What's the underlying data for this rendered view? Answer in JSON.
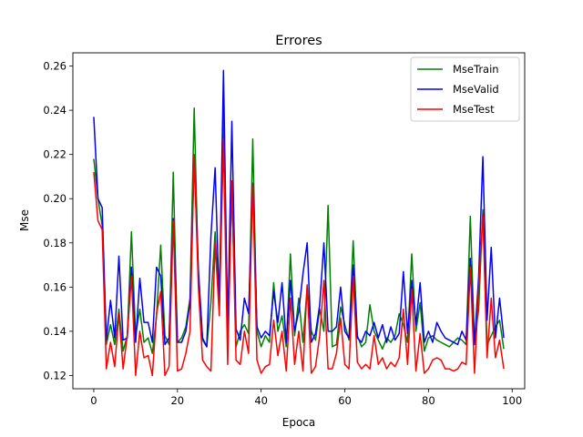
{
  "chart_data": {
    "type": "line",
    "title": "Errores",
    "xlabel": "Epoca",
    "ylabel": "Mse",
    "xlim": [
      -5,
      103
    ],
    "ylim": [
      0.114,
      0.266
    ],
    "xticks": [
      0,
      20,
      40,
      60,
      80,
      100
    ],
    "yticks": [
      0.12,
      0.14,
      0.16,
      0.18,
      0.2,
      0.22,
      0.24,
      0.26
    ],
    "xtick_labels": [
      "0",
      "20",
      "40",
      "60",
      "80",
      "100"
    ],
    "ytick_labels": [
      "0.12",
      "0.14",
      "0.16",
      "0.18",
      "0.20",
      "0.22",
      "0.24",
      "0.26"
    ],
    "grid": false,
    "legend_position": "top-right",
    "series": [
      {
        "name": "MseTrain",
        "color": "#008000",
        "x": [
          0,
          1,
          2,
          3,
          4,
          5,
          6,
          7,
          8,
          9,
          10,
          11,
          12,
          13,
          14,
          15,
          16,
          17,
          18,
          19,
          20,
          21,
          22,
          23,
          24,
          25,
          26,
          27,
          28,
          29,
          30,
          31,
          32,
          33,
          34,
          35,
          36,
          37,
          38,
          39,
          40,
          41,
          42,
          43,
          44,
          45,
          46,
          47,
          48,
          49,
          50,
          51,
          52,
          53,
          54,
          55,
          56,
          57,
          58,
          59,
          60,
          61,
          62,
          63,
          64,
          65,
          66,
          67,
          68,
          69,
          70,
          71,
          72,
          73,
          74,
          75,
          76,
          77,
          78,
          79,
          80,
          81,
          82,
          83,
          84,
          85,
          86,
          87,
          88,
          89,
          90,
          91,
          92,
          93,
          94,
          95,
          96,
          97,
          98
        ],
        "values": [
          0.218,
          0.2,
          0.188,
          0.134,
          0.143,
          0.134,
          0.15,
          0.131,
          0.138,
          0.185,
          0.138,
          0.15,
          0.135,
          0.137,
          0.13,
          0.147,
          0.179,
          0.138,
          0.134,
          0.212,
          0.135,
          0.137,
          0.142,
          0.155,
          0.241,
          0.165,
          0.136,
          0.133,
          0.153,
          0.185,
          0.15,
          0.24,
          0.14,
          0.205,
          0.133,
          0.14,
          0.143,
          0.139,
          0.227,
          0.14,
          0.133,
          0.138,
          0.135,
          0.162,
          0.14,
          0.147,
          0.133,
          0.175,
          0.138,
          0.155,
          0.135,
          0.16,
          0.14,
          0.136,
          0.15,
          0.14,
          0.197,
          0.133,
          0.134,
          0.151,
          0.143,
          0.136,
          0.181,
          0.138,
          0.133,
          0.135,
          0.152,
          0.14,
          0.136,
          0.132,
          0.137,
          0.135,
          0.138,
          0.148,
          0.143,
          0.135,
          0.175,
          0.14,
          0.153,
          0.131,
          0.137,
          0.138,
          0.136,
          0.135,
          0.134,
          0.133,
          0.135,
          0.137,
          0.136,
          0.134,
          0.192,
          0.135,
          0.15,
          0.195,
          0.134,
          0.138,
          0.142,
          0.145,
          0.132
        ]
      },
      {
        "name": "MseValid",
        "color": "#0000ff",
        "x": [
          0,
          1,
          2,
          3,
          4,
          5,
          6,
          7,
          8,
          9,
          10,
          11,
          12,
          13,
          14,
          15,
          16,
          17,
          18,
          19,
          20,
          21,
          22,
          23,
          24,
          25,
          26,
          27,
          28,
          29,
          30,
          31,
          32,
          33,
          34,
          35,
          36,
          37,
          38,
          39,
          40,
          41,
          42,
          43,
          44,
          45,
          46,
          47,
          48,
          49,
          50,
          51,
          52,
          53,
          54,
          55,
          56,
          57,
          58,
          59,
          60,
          61,
          62,
          63,
          64,
          65,
          66,
          67,
          68,
          69,
          70,
          71,
          72,
          73,
          74,
          75,
          76,
          77,
          78,
          79,
          80,
          81,
          82,
          83,
          84,
          85,
          86,
          87,
          88,
          89,
          90,
          91,
          92,
          93,
          94,
          95,
          96,
          97,
          98
        ],
        "values": [
          0.237,
          0.2,
          0.196,
          0.136,
          0.154,
          0.137,
          0.174,
          0.136,
          0.137,
          0.169,
          0.135,
          0.164,
          0.144,
          0.144,
          0.135,
          0.169,
          0.165,
          0.134,
          0.137,
          0.191,
          0.135,
          0.135,
          0.14,
          0.153,
          0.218,
          0.168,
          0.137,
          0.133,
          0.183,
          0.214,
          0.152,
          0.258,
          0.14,
          0.235,
          0.141,
          0.136,
          0.155,
          0.148,
          0.207,
          0.142,
          0.137,
          0.14,
          0.138,
          0.158,
          0.144,
          0.162,
          0.135,
          0.163,
          0.14,
          0.149,
          0.166,
          0.18,
          0.135,
          0.139,
          0.152,
          0.18,
          0.14,
          0.14,
          0.142,
          0.16,
          0.14,
          0.137,
          0.17,
          0.137,
          0.135,
          0.14,
          0.138,
          0.144,
          0.137,
          0.143,
          0.135,
          0.142,
          0.136,
          0.139,
          0.167,
          0.139,
          0.163,
          0.143,
          0.162,
          0.135,
          0.14,
          0.135,
          0.144,
          0.14,
          0.137,
          0.136,
          0.135,
          0.134,
          0.14,
          0.136,
          0.173,
          0.134,
          0.165,
          0.219,
          0.145,
          0.178,
          0.137,
          0.155,
          0.137
        ]
      },
      {
        "name": "MseTest",
        "color": "#ff0000",
        "x": [
          0,
          1,
          2,
          3,
          4,
          5,
          6,
          7,
          8,
          9,
          10,
          11,
          12,
          13,
          14,
          15,
          16,
          17,
          18,
          19,
          20,
          21,
          22,
          23,
          24,
          25,
          26,
          27,
          28,
          29,
          30,
          31,
          32,
          33,
          34,
          35,
          36,
          37,
          38,
          39,
          40,
          41,
          42,
          43,
          44,
          45,
          46,
          47,
          48,
          49,
          50,
          51,
          52,
          53,
          54,
          55,
          56,
          57,
          58,
          59,
          60,
          61,
          62,
          63,
          64,
          65,
          66,
          67,
          68,
          69,
          70,
          71,
          72,
          73,
          74,
          75,
          76,
          77,
          78,
          79,
          80,
          81,
          82,
          83,
          84,
          85,
          86,
          87,
          88,
          89,
          90,
          91,
          92,
          93,
          94,
          95,
          96,
          97,
          98
        ],
        "values": [
          0.212,
          0.19,
          0.186,
          0.123,
          0.135,
          0.124,
          0.148,
          0.123,
          0.138,
          0.165,
          0.12,
          0.14,
          0.128,
          0.129,
          0.12,
          0.148,
          0.158,
          0.12,
          0.124,
          0.19,
          0.122,
          0.123,
          0.13,
          0.14,
          0.22,
          0.16,
          0.127,
          0.124,
          0.122,
          0.18,
          0.147,
          0.227,
          0.125,
          0.208,
          0.127,
          0.125,
          0.14,
          0.13,
          0.207,
          0.127,
          0.121,
          0.124,
          0.125,
          0.145,
          0.129,
          0.14,
          0.122,
          0.155,
          0.125,
          0.14,
          0.122,
          0.161,
          0.121,
          0.124,
          0.138,
          0.163,
          0.123,
          0.123,
          0.13,
          0.146,
          0.125,
          0.123,
          0.165,
          0.126,
          0.123,
          0.125,
          0.123,
          0.138,
          0.125,
          0.128,
          0.123,
          0.126,
          0.124,
          0.128,
          0.15,
          0.125,
          0.159,
          0.122,
          0.139,
          0.121,
          0.123,
          0.127,
          0.128,
          0.127,
          0.123,
          0.123,
          0.122,
          0.123,
          0.126,
          0.125,
          0.169,
          0.121,
          0.16,
          0.193,
          0.128,
          0.155,
          0.128,
          0.136,
          0.123
        ]
      }
    ]
  }
}
